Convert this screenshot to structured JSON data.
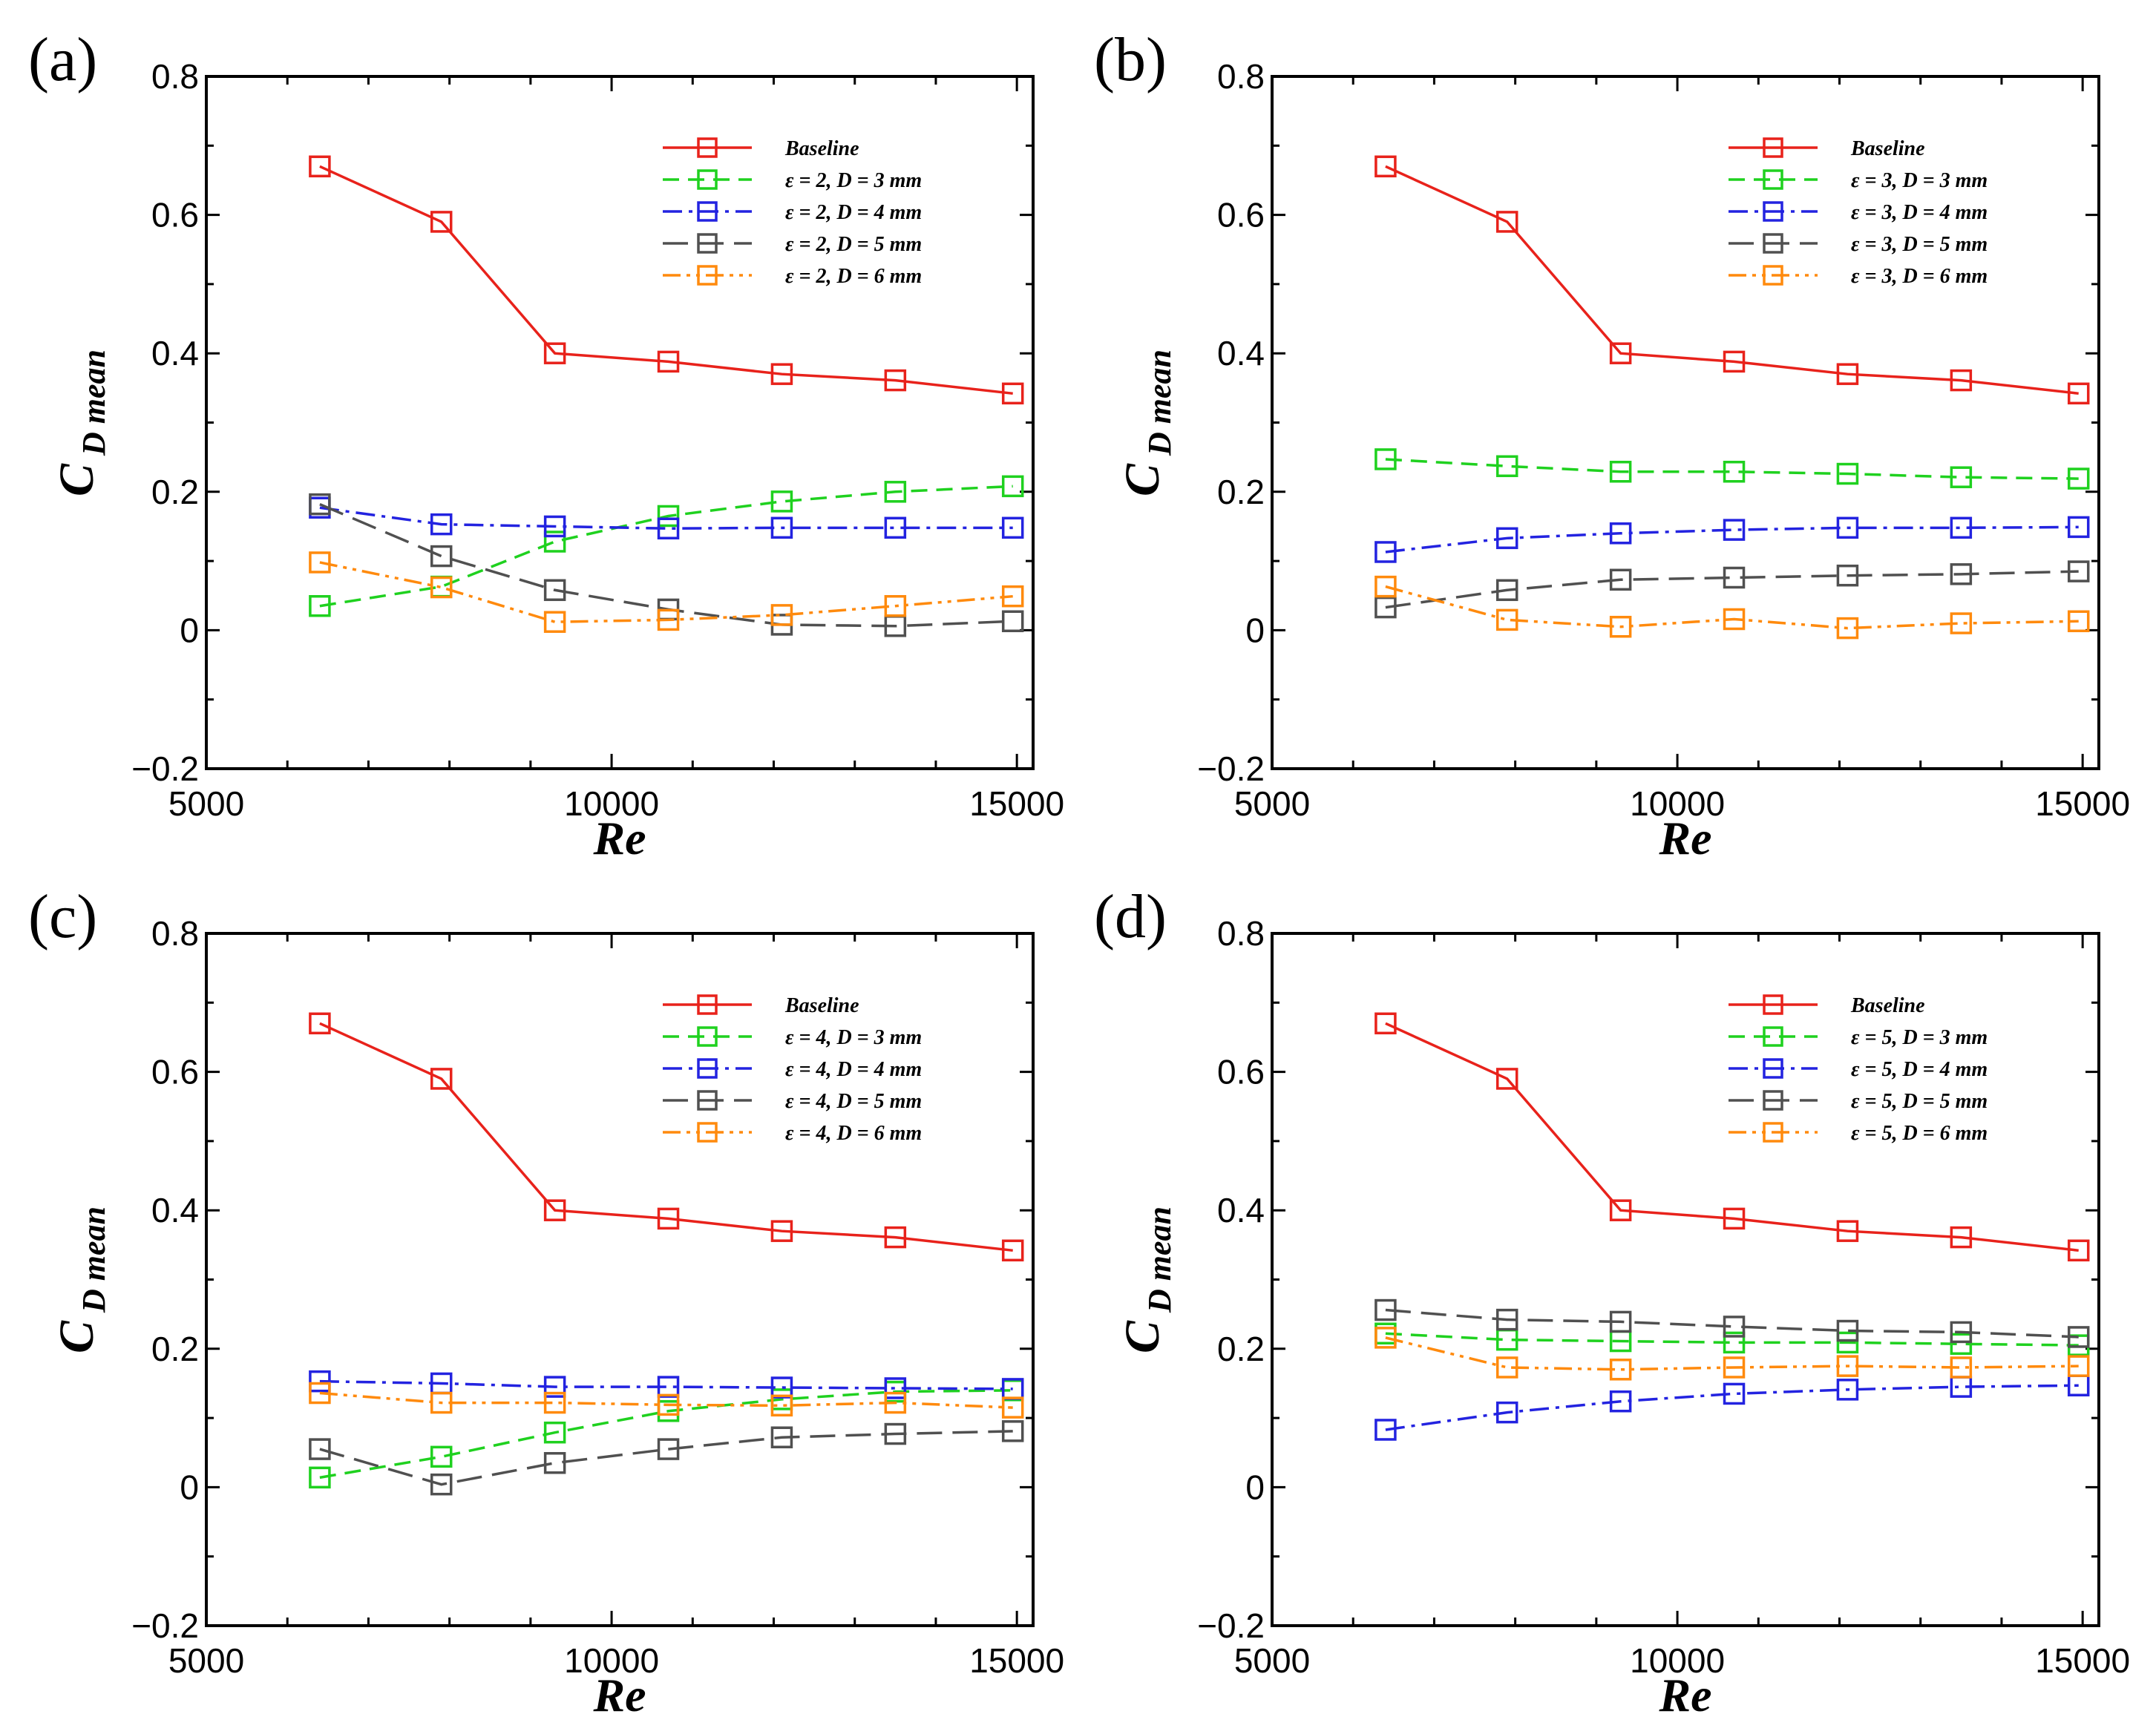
{
  "chart_data": [
    {
      "type": "line",
      "panel_label": "(a)",
      "xlabel": "Re",
      "ylabel_main": "C",
      "ylabel_sub": "D mean",
      "xlim": [
        5000,
        15200
      ],
      "ylim": [
        -0.2,
        0.8
      ],
      "x_ticks": [
        "5000",
        "10000",
        "15000"
      ],
      "y_ticks": [
        "−0.2",
        "0",
        "0.2",
        "0.4",
        "0.6",
        "0.8"
      ],
      "legend_position": "top-right",
      "x": [
        6400,
        7900,
        9300,
        10700,
        12100,
        13500,
        14950
      ],
      "series": [
        {
          "name": "Baseline",
          "color": "#e8221b",
          "dash": "solid",
          "values": [
            0.67,
            0.59,
            0.4,
            0.388,
            0.37,
            0.361,
            0.342
          ]
        },
        {
          "name": "ε = 2, D = 3 mm",
          "color": "#1fd11f",
          "dash": "dashed",
          "values": [
            0.035,
            0.063,
            0.128,
            0.165,
            0.186,
            0.2,
            0.208
          ]
        },
        {
          "name": "ε = 2, D = 4 mm",
          "color": "#2323e0",
          "dash": "dashdot",
          "values": [
            0.177,
            0.153,
            0.15,
            0.147,
            0.148,
            0.148,
            0.148
          ]
        },
        {
          "name": "ε = 2, D = 5 mm",
          "color": "#505050",
          "dash": "longdash",
          "values": [
            0.182,
            0.107,
            0.058,
            0.03,
            0.008,
            0.006,
            0.013
          ]
        },
        {
          "name": "ε = 2, D = 6 mm",
          "color": "#ff8a0d",
          "dash": "dashdotdot",
          "values": [
            0.098,
            0.062,
            0.012,
            0.015,
            0.022,
            0.035,
            0.049
          ]
        }
      ]
    },
    {
      "type": "line",
      "panel_label": "(b)",
      "xlabel": "Re",
      "ylabel_main": "C",
      "ylabel_sub": "D mean",
      "xlim": [
        5000,
        15200
      ],
      "ylim": [
        -0.2,
        0.8
      ],
      "x_ticks": [
        "5000",
        "10000",
        "15000"
      ],
      "y_ticks": [
        "−0.2",
        "0",
        "0.2",
        "0.4",
        "0.6",
        "0.8"
      ],
      "legend_position": "top-right",
      "x": [
        6400,
        7900,
        9300,
        10700,
        12100,
        13500,
        14950
      ],
      "series": [
        {
          "name": "Baseline",
          "color": "#e8221b",
          "dash": "solid",
          "values": [
            0.67,
            0.59,
            0.4,
            0.388,
            0.37,
            0.361,
            0.342
          ]
        },
        {
          "name": "ε = 3, D = 3 mm",
          "color": "#1fd11f",
          "dash": "dashed",
          "values": [
            0.247,
            0.237,
            0.229,
            0.229,
            0.226,
            0.221,
            0.219
          ]
        },
        {
          "name": "ε = 3, D = 4 mm",
          "color": "#2323e0",
          "dash": "dashdot",
          "values": [
            0.113,
            0.133,
            0.14,
            0.145,
            0.148,
            0.148,
            0.149
          ]
        },
        {
          "name": "ε = 3, D = 5 mm",
          "color": "#505050",
          "dash": "longdash",
          "values": [
            0.033,
            0.058,
            0.073,
            0.076,
            0.079,
            0.081,
            0.085
          ]
        },
        {
          "name": "ε = 3, D = 6 mm",
          "color": "#ff8a0d",
          "dash": "dashdotdot",
          "values": [
            0.063,
            0.015,
            0.005,
            0.016,
            0.003,
            0.01,
            0.013
          ]
        }
      ]
    },
    {
      "type": "line",
      "panel_label": "(c)",
      "xlabel": "Re",
      "ylabel_main": "C",
      "ylabel_sub": "D mean",
      "xlim": [
        5000,
        15200
      ],
      "ylim": [
        -0.2,
        0.8
      ],
      "x_ticks": [
        "5000",
        "10000",
        "15000"
      ],
      "y_ticks": [
        "−0.2",
        "0",
        "0.2",
        "0.4",
        "0.6",
        "0.8"
      ],
      "legend_position": "top-right",
      "x": [
        6400,
        7900,
        9300,
        10700,
        12100,
        13500,
        14950
      ],
      "series": [
        {
          "name": "Baseline",
          "color": "#e8221b",
          "dash": "solid",
          "values": [
            0.67,
            0.59,
            0.4,
            0.388,
            0.37,
            0.361,
            0.342
          ]
        },
        {
          "name": "ε = 4, D = 3 mm",
          "color": "#1fd11f",
          "dash": "dashed",
          "values": [
            0.014,
            0.044,
            0.079,
            0.11,
            0.127,
            0.138,
            0.14
          ]
        },
        {
          "name": "ε = 4, D = 4 mm",
          "color": "#2323e0",
          "dash": "dashdot",
          "values": [
            0.153,
            0.15,
            0.145,
            0.145,
            0.144,
            0.143,
            0.142
          ]
        },
        {
          "name": "ε = 4, D = 5 mm",
          "color": "#505050",
          "dash": "longdash",
          "values": [
            0.055,
            0.004,
            0.035,
            0.055,
            0.072,
            0.077,
            0.081
          ]
        },
        {
          "name": "ε = 4, D = 6 mm",
          "color": "#ff8a0d",
          "dash": "dashdotdot",
          "values": [
            0.136,
            0.122,
            0.122,
            0.119,
            0.118,
            0.122,
            0.115
          ]
        }
      ]
    },
    {
      "type": "line",
      "panel_label": "(d)",
      "xlabel": "Re",
      "ylabel_main": "C",
      "ylabel_sub": "D mean",
      "xlim": [
        5000,
        15200
      ],
      "ylim": [
        -0.2,
        0.8
      ],
      "x_ticks": [
        "5000",
        "10000",
        "15000"
      ],
      "y_ticks": [
        "−0.2",
        "0",
        "0.2",
        "0.4",
        "0.6",
        "0.8"
      ],
      "legend_position": "top-right",
      "x": [
        6400,
        7900,
        9300,
        10700,
        12100,
        13500,
        14950
      ],
      "series": [
        {
          "name": "Baseline",
          "color": "#e8221b",
          "dash": "solid",
          "values": [
            0.67,
            0.59,
            0.4,
            0.388,
            0.37,
            0.361,
            0.342
          ]
        },
        {
          "name": "ε = 5, D = 3 mm",
          "color": "#1fd11f",
          "dash": "dashed",
          "values": [
            0.222,
            0.213,
            0.211,
            0.209,
            0.209,
            0.207,
            0.205
          ]
        },
        {
          "name": "ε = 5, D = 4 mm",
          "color": "#2323e0",
          "dash": "dashdot",
          "values": [
            0.083,
            0.108,
            0.124,
            0.135,
            0.141,
            0.145,
            0.147
          ]
        },
        {
          "name": "ε = 5, D = 5 mm",
          "color": "#505050",
          "dash": "longdash",
          "values": [
            0.256,
            0.242,
            0.239,
            0.232,
            0.226,
            0.224,
            0.217
          ]
        },
        {
          "name": "ε = 5, D = 6 mm",
          "color": "#ff8a0d",
          "dash": "dashdotdot",
          "values": [
            0.216,
            0.173,
            0.17,
            0.173,
            0.175,
            0.173,
            0.175
          ]
        }
      ]
    }
  ]
}
